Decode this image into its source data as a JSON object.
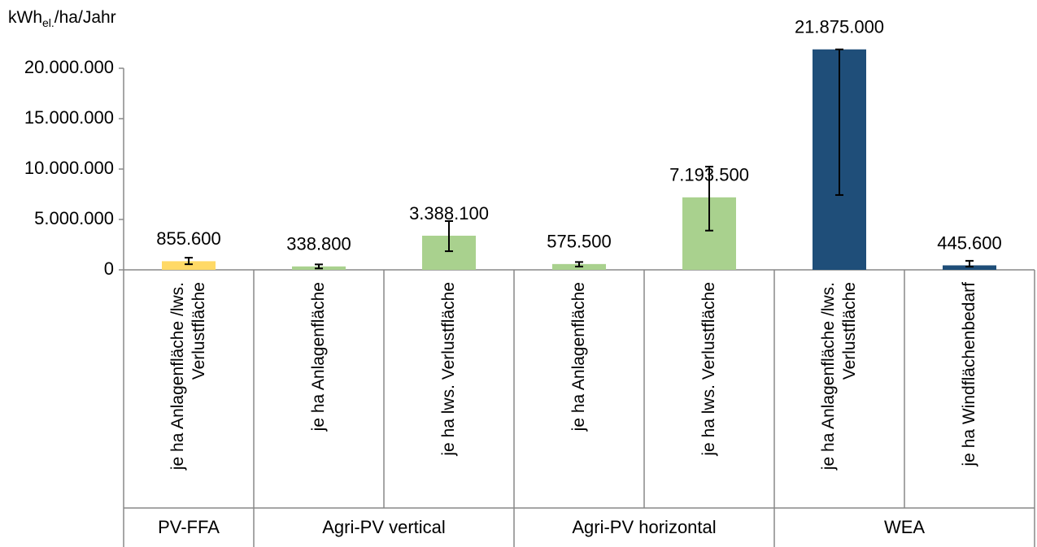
{
  "chart_data": {
    "type": "bar",
    "y_label": {
      "main": "kWh",
      "sub": "el.",
      "rest": "/ha/Jahr"
    },
    "groups": [
      {
        "name": "PV-FFA",
        "color": "#ffd966",
        "categories": [
          "je ha Anlagenfläche /lws. Verlustfläche"
        ]
      },
      {
        "name": "Agri-PV vertical",
        "color": "#a9d18e",
        "categories": [
          "je ha Anlagenfläche",
          "je ha lws. Verlustfläche"
        ]
      },
      {
        "name": "Agri-PV horizontal",
        "color": "#a9d18e",
        "categories": [
          "je ha Anlagenfläche",
          "je ha lws. Verlustfläche"
        ]
      },
      {
        "name": "WEA",
        "color": "#1f4e79",
        "categories": [
          "je ha Anlagenfläche /lws. Verlustfläche",
          "je ha Windflächenbedarf"
        ]
      }
    ],
    "values": [
      855600,
      338800,
      3388100,
      575500,
      7193500,
      21875000,
      445600
    ],
    "value_labels": [
      "855.600",
      "338.800",
      "3.388.100",
      "575.500",
      "7.193.500",
      "21.875.000",
      "445.600"
    ],
    "error_minus": [
      300000,
      200000,
      1540000,
      250000,
      3300000,
      14450000,
      130000
    ],
    "error_plus": [
      350000,
      200000,
      1450000,
      200000,
      3050000,
      0,
      450000
    ],
    "ylim": [
      0,
      20000000
    ],
    "yticks": [
      {
        "value": 0,
        "label": "0"
      },
      {
        "value": 5000000,
        "label": "5.000.000"
      },
      {
        "value": 10000000,
        "label": "10.000.000"
      },
      {
        "value": 15000000,
        "label": "15.000.000"
      },
      {
        "value": 20000000,
        "label": "20.000.000"
      }
    ]
  }
}
